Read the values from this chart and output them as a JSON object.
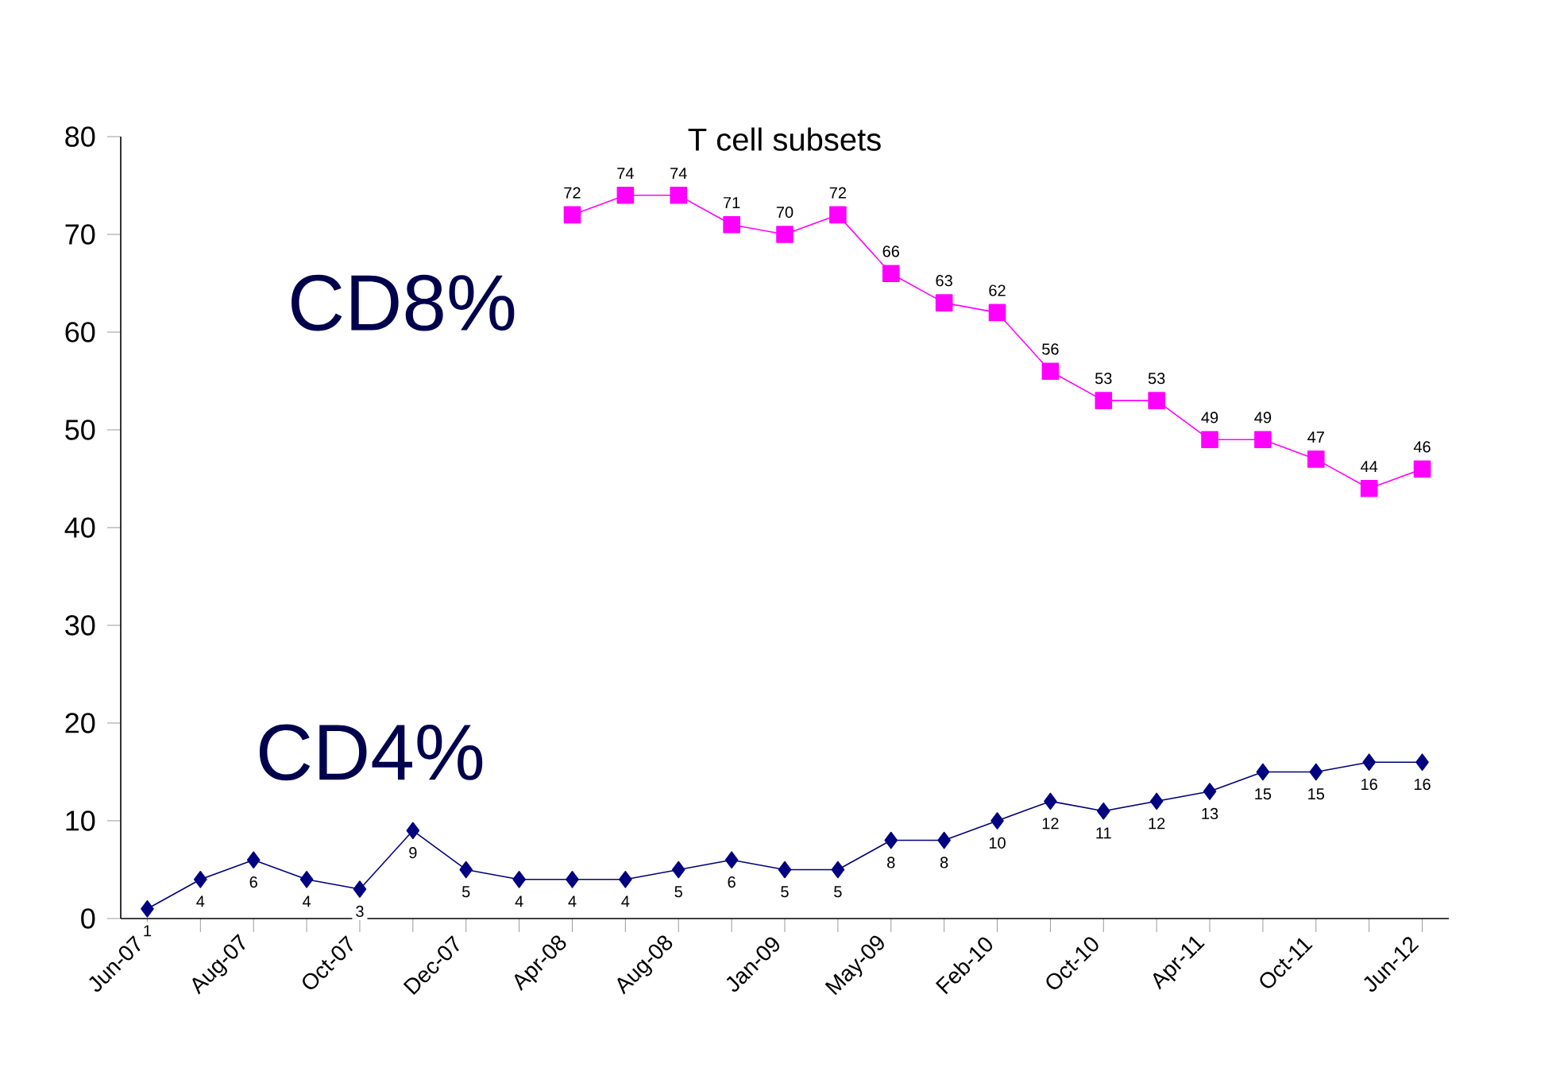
{
  "chart_data": {
    "type": "line",
    "title": "T cell subsets",
    "categories": [
      "Jun-07",
      null,
      "Aug-07",
      null,
      "Oct-07",
      null,
      "Dec-07",
      null,
      "Apr-08",
      null,
      "Aug-08",
      null,
      "Jan-09",
      null,
      "May-09",
      null,
      "Feb-10",
      null,
      "Oct-10",
      null,
      "Apr-11",
      null,
      "Oct-11",
      null,
      "Jun-12"
    ],
    "series": [
      {
        "name": "CD8%",
        "color": "#ff00ff",
        "marker": "square",
        "values": [
          null,
          null,
          null,
          null,
          null,
          null,
          null,
          null,
          72,
          74,
          74,
          71,
          70,
          72,
          66,
          63,
          62,
          56,
          53,
          53,
          49,
          49,
          47,
          44,
          46
        ]
      },
      {
        "name": "CD4%",
        "color": "#000080",
        "marker": "diamond",
        "values": [
          1,
          4,
          6,
          4,
          3,
          9,
          5,
          4,
          4,
          4,
          5,
          6,
          5,
          5,
          8,
          8,
          10,
          12,
          11,
          12,
          13,
          15,
          15,
          16,
          16
        ]
      }
    ],
    "ylim": [
      0,
      80
    ],
    "yticks": [
      0,
      10,
      20,
      30,
      40,
      50,
      60,
      70,
      80
    ],
    "grid": false,
    "legend": false,
    "data_labels": true
  }
}
